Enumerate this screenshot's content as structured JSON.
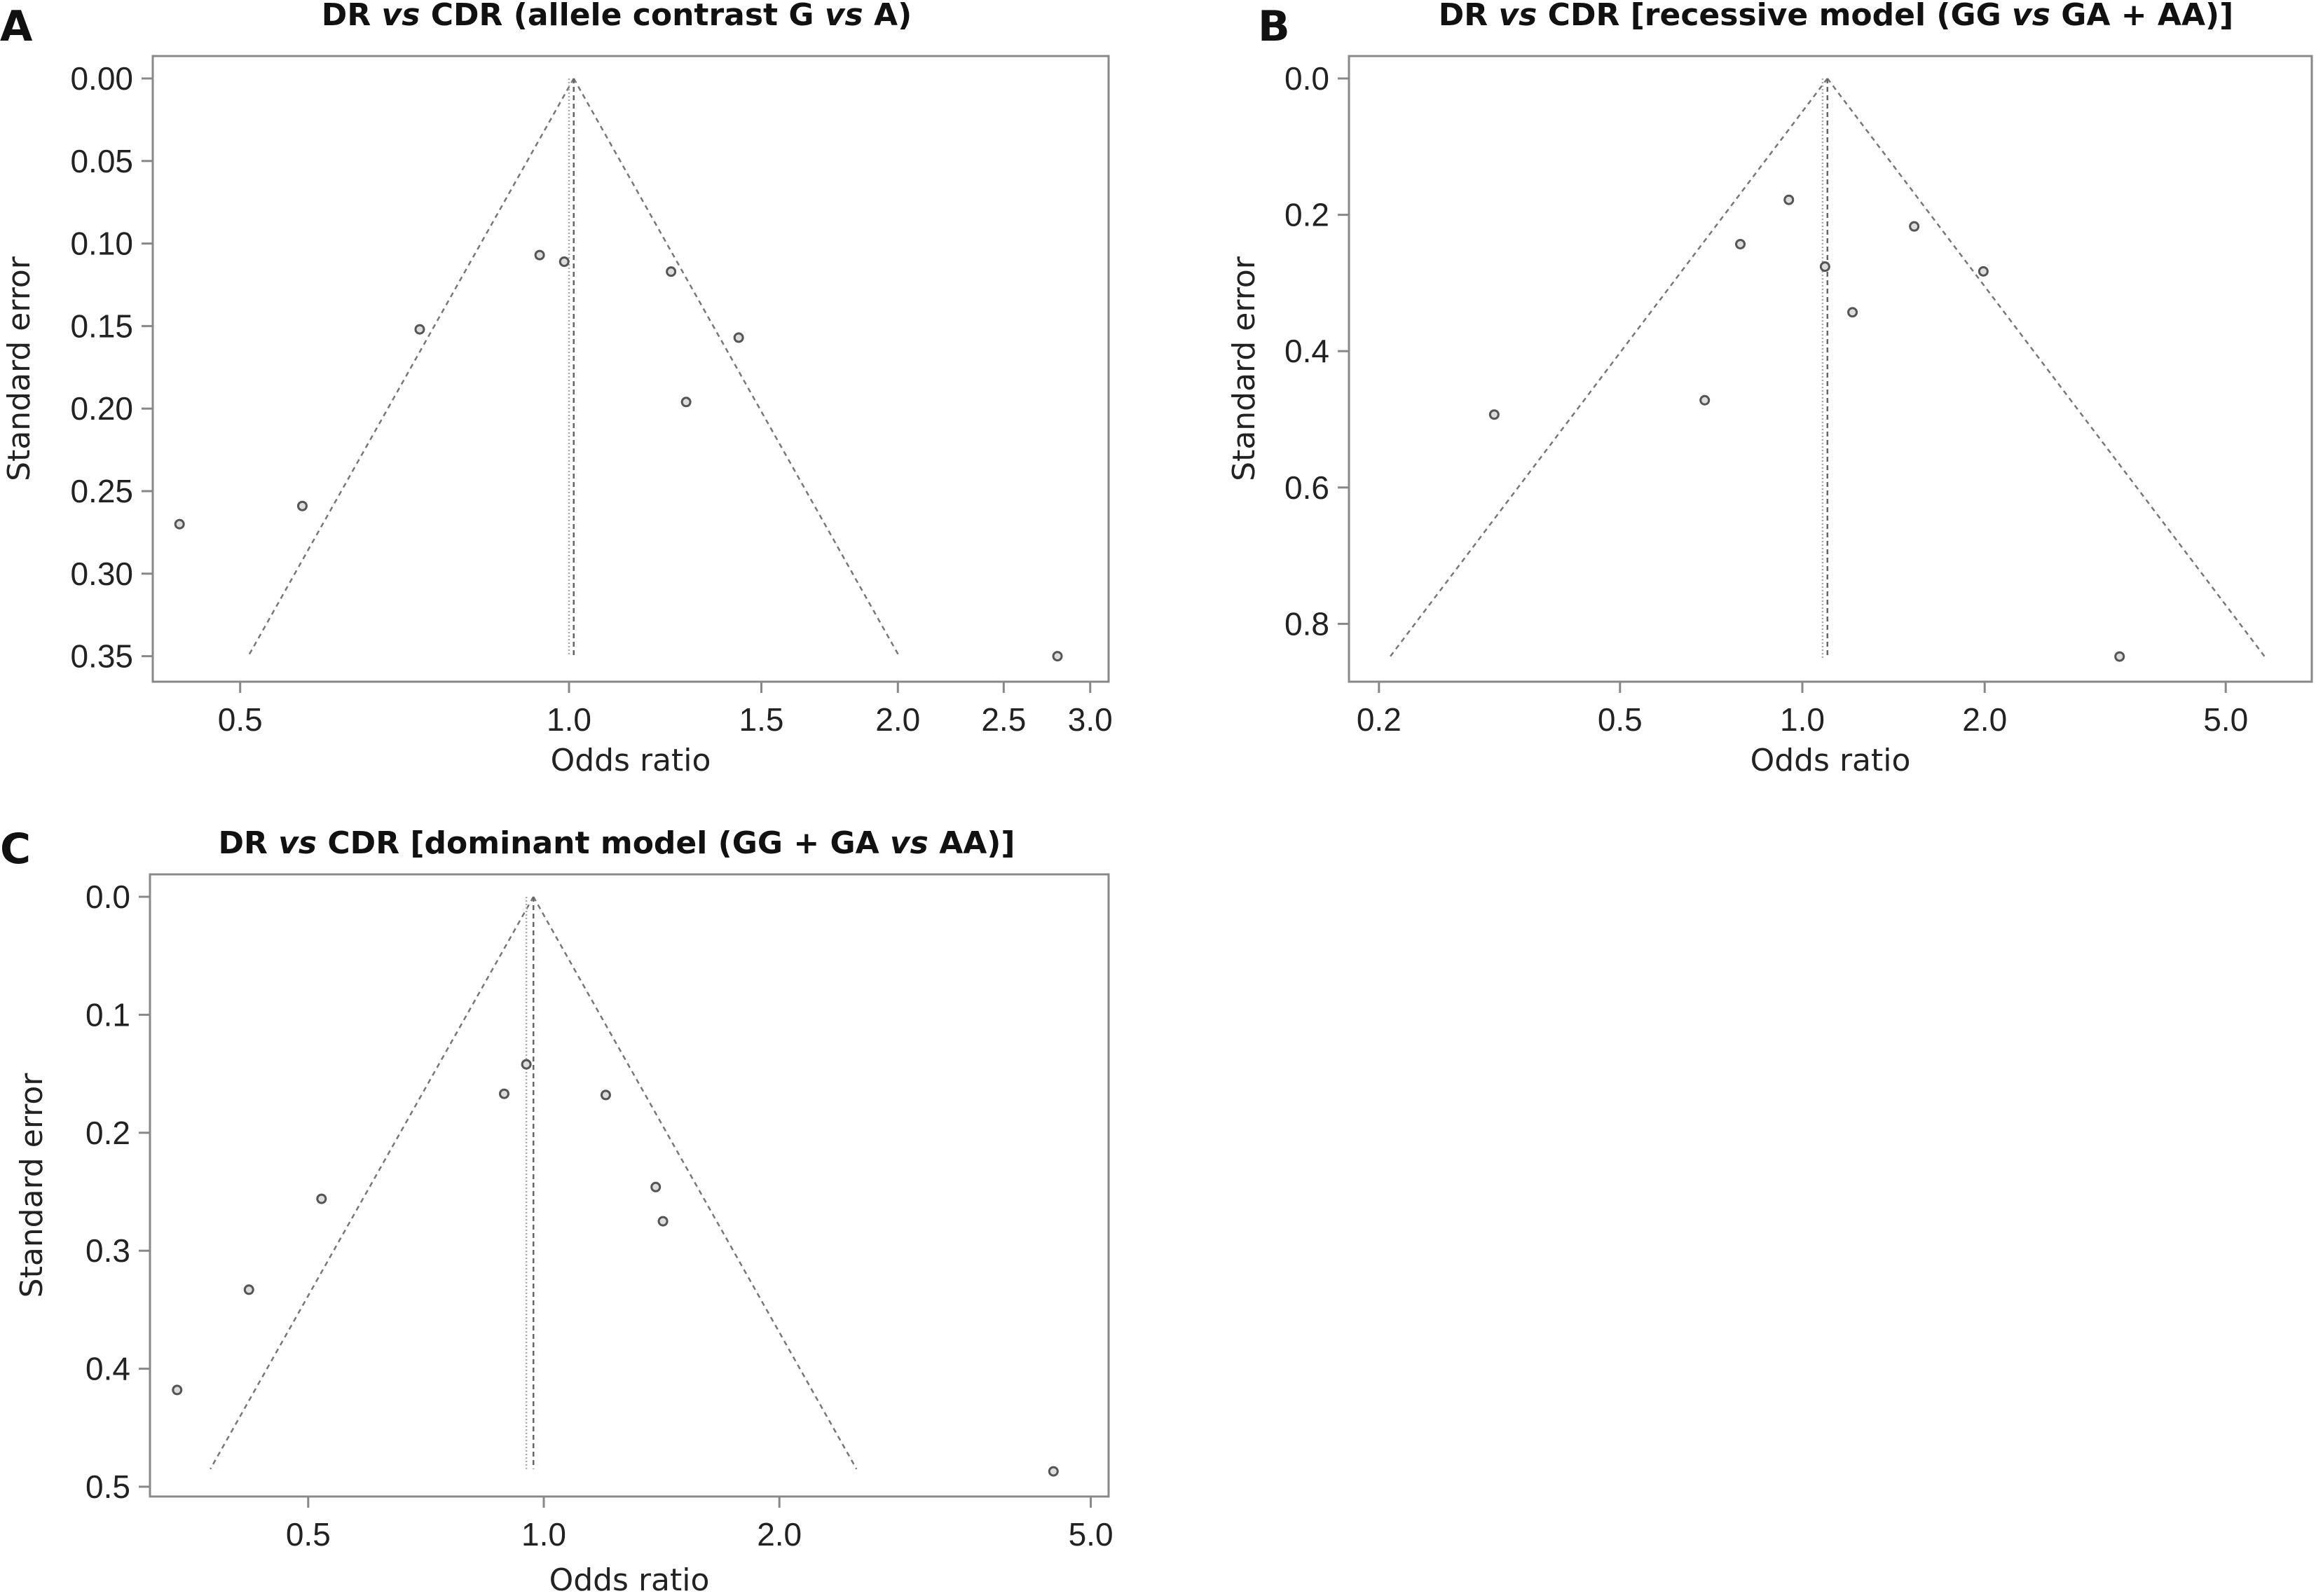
{
  "chart_data": [
    {
      "type": "scatter",
      "panel_letter": "A",
      "title_parts": [
        {
          "text": "DR ",
          "italic": false
        },
        {
          "text": "vs",
          "italic": true
        },
        {
          "text": " CDR (allele contrast G ",
          "italic": false
        },
        {
          "text": "vs",
          "italic": true
        },
        {
          "text": " A)",
          "italic": false
        }
      ],
      "xlabel": "Odds ratio",
      "ylabel": "Standard error",
      "x_scale": "log",
      "y_reversed": true,
      "x_ticks": [
        0.5,
        1.0,
        1.5,
        2.0,
        2.5,
        3.0
      ],
      "x_tick_labels": [
        "0.5",
        "1.0",
        "1.5",
        "2.0",
        "2.5",
        "3.0"
      ],
      "y_ticks": [
        0,
        0.05,
        0.1,
        0.15,
        0.2,
        0.25,
        0.3,
        0.35
      ],
      "y_tick_labels": [
        "0.00",
        "0.05",
        "0.10",
        "0.15",
        "0.20",
        "0.25",
        "0.30",
        "0.35"
      ],
      "summary_or_dashed": 1.01,
      "summary_or_dotted": 1.0,
      "funnel_max_se": 0.35,
      "points": [
        {
          "or": 0.44,
          "se": 0.27
        },
        {
          "or": 0.57,
          "se": 0.259
        },
        {
          "or": 0.73,
          "se": 0.152
        },
        {
          "or": 0.94,
          "se": 0.107
        },
        {
          "or": 0.99,
          "se": 0.111
        },
        {
          "or": 1.24,
          "se": 0.117
        },
        {
          "or": 1.43,
          "se": 0.157
        },
        {
          "or": 1.28,
          "se": 0.196
        },
        {
          "or": 2.8,
          "se": 0.35
        }
      ]
    },
    {
      "type": "scatter",
      "panel_letter": "B",
      "title_parts": [
        {
          "text": "DR ",
          "italic": false
        },
        {
          "text": "vs",
          "italic": true
        },
        {
          "text": " CDR [recessive model (GG ",
          "italic": false
        },
        {
          "text": "vs",
          "italic": true
        },
        {
          "text": " GA + AA)]",
          "italic": false
        }
      ],
      "xlabel": "Odds ratio",
      "ylabel": "Standard error",
      "x_scale": "log",
      "y_reversed": true,
      "x_ticks": [
        0.2,
        0.5,
        1.0,
        2.0,
        5.0
      ],
      "x_tick_labels": [
        "0.2",
        "0.5",
        "1.0",
        "2.0",
        "5.0"
      ],
      "y_ticks": [
        0,
        0.2,
        0.4,
        0.6,
        0.8
      ],
      "y_tick_labels": [
        "0.0",
        "0.2",
        "0.4",
        "0.6",
        "0.8"
      ],
      "summary_or_dashed": 1.1,
      "summary_or_dotted": 1.08,
      "funnel_max_se": 0.85,
      "points": [
        {
          "or": 0.31,
          "se": 0.493
        },
        {
          "or": 0.69,
          "se": 0.472
        },
        {
          "or": 0.79,
          "se": 0.243
        },
        {
          "or": 0.95,
          "se": 0.178
        },
        {
          "or": 1.09,
          "se": 0.276
        },
        {
          "or": 1.21,
          "se": 0.343
        },
        {
          "or": 1.53,
          "se": 0.217
        },
        {
          "or": 1.99,
          "se": 0.283
        },
        {
          "or": 3.34,
          "se": 0.848
        }
      ]
    },
    {
      "type": "scatter",
      "panel_letter": "C",
      "title_parts": [
        {
          "text": "DR ",
          "italic": false
        },
        {
          "text": "vs",
          "italic": true
        },
        {
          "text": " CDR [dominant model (GG + GA ",
          "italic": false
        },
        {
          "text": "vs",
          "italic": true
        },
        {
          "text": " AA)]",
          "italic": false
        }
      ],
      "xlabel": "Odds ratio",
      "ylabel": "Standard error",
      "x_scale": "log",
      "y_reversed": true,
      "x_ticks": [
        0.5,
        1.0,
        2.0,
        5.0
      ],
      "x_tick_labels": [
        "0.5",
        "1.0",
        "2.0",
        "5.0"
      ],
      "y_ticks": [
        0,
        0.1,
        0.2,
        0.3,
        0.4,
        0.5
      ],
      "y_tick_labels": [
        "0.0",
        "0.1",
        "0.2",
        "0.3",
        "0.4",
        "0.5"
      ],
      "summary_or_dashed": 0.97,
      "summary_or_dotted": 0.95,
      "funnel_max_se": 0.485,
      "points": [
        {
          "or": 0.34,
          "se": 0.418
        },
        {
          "or": 0.42,
          "se": 0.333
        },
        {
          "or": 0.52,
          "se": 0.256
        },
        {
          "or": 0.89,
          "se": 0.167
        },
        {
          "or": 0.95,
          "se": 0.142
        },
        {
          "or": 1.2,
          "se": 0.168
        },
        {
          "or": 1.39,
          "se": 0.246
        },
        {
          "or": 1.42,
          "se": 0.275
        },
        {
          "or": 4.48,
          "se": 0.487
        }
      ]
    }
  ]
}
